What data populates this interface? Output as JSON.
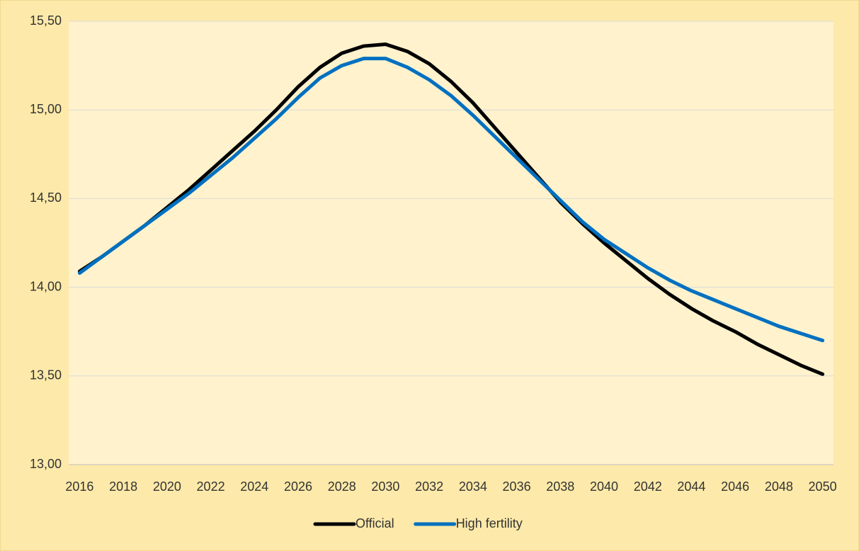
{
  "chart_data": {
    "type": "line",
    "categories": [
      "2016",
      null,
      "2018",
      null,
      "2020",
      null,
      "2022",
      null,
      "2024",
      null,
      "2026",
      null,
      "2028",
      null,
      "2030",
      null,
      "2032",
      null,
      "2034",
      null,
      "2036",
      null,
      "2038",
      null,
      "2040",
      null,
      "2042",
      null,
      "2044",
      null,
      "2046",
      null,
      "2048",
      null,
      "2050"
    ],
    "series": [
      {
        "name": "Official",
        "color": "#000000",
        "values": [
          14.09,
          14.17,
          14.26,
          14.35,
          14.45,
          14.55,
          14.66,
          14.77,
          14.88,
          15.0,
          15.13,
          15.24,
          15.32,
          15.36,
          15.37,
          15.33,
          15.26,
          15.16,
          15.04,
          14.9,
          14.76,
          14.62,
          14.48,
          14.36,
          14.25,
          14.15,
          14.05,
          13.96,
          13.88,
          13.81,
          13.75,
          13.68,
          13.62,
          13.56,
          13.51
        ]
      },
      {
        "name": "High fertility",
        "color": "#0070c0",
        "values": [
          14.08,
          14.17,
          14.26,
          14.35,
          14.44,
          14.53,
          14.63,
          14.73,
          14.84,
          14.95,
          15.07,
          15.18,
          15.25,
          15.29,
          15.29,
          15.24,
          15.17,
          15.08,
          14.97,
          14.85,
          14.73,
          14.61,
          14.49,
          14.37,
          14.27,
          14.19,
          14.11,
          14.04,
          13.98,
          13.93,
          13.88,
          13.83,
          13.78,
          13.74,
          13.7
        ]
      }
    ],
    "ylim": [
      13,
      15.5
    ],
    "yticks": [
      {
        "value": 13,
        "label": "13,00"
      },
      {
        "value": 13.5,
        "label": "13,50"
      },
      {
        "value": 14,
        "label": "14,00"
      },
      {
        "value": 14.5,
        "label": "14,50"
      },
      {
        "value": 15,
        "label": "15,00"
      },
      {
        "value": 15.5,
        "label": "15,50"
      }
    ],
    "grid": true,
    "legend": "bottom"
  }
}
